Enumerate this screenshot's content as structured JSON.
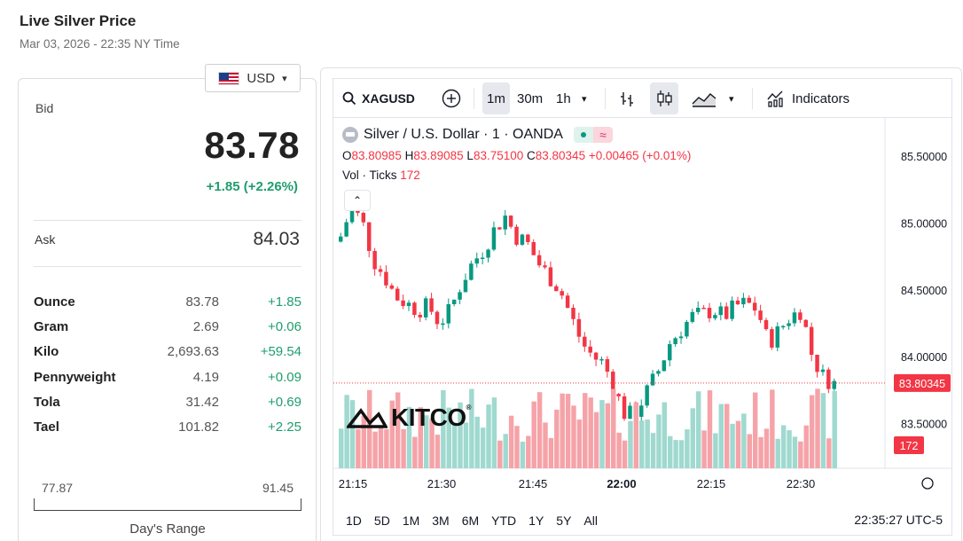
{
  "header": {
    "title": "Live Silver Price",
    "date": "Mar 03, 2026 - 22:35 NY Time"
  },
  "currency": {
    "selected": "USD"
  },
  "quote": {
    "bid_label": "Bid",
    "bid": "83.78",
    "change": "+1.85 (+2.26%)",
    "ask_label": "Ask",
    "ask": "84.03"
  },
  "units": [
    {
      "name": "Ounce",
      "price": "83.78",
      "change": "+1.85"
    },
    {
      "name": "Gram",
      "price": "2.69",
      "change": "+0.06"
    },
    {
      "name": "Kilo",
      "price": "2,693.63",
      "change": "+59.54"
    },
    {
      "name": "Pennyweight",
      "price": "4.19",
      "change": "+0.09"
    },
    {
      "name": "Tola",
      "price": "31.42",
      "change": "+0.69"
    },
    {
      "name": "Tael",
      "price": "101.82",
      "change": "+2.25"
    }
  ],
  "day_range": {
    "low": "77.87",
    "high": "91.45",
    "label": "Day's Range"
  },
  "toolbar": {
    "symbol": "XAGUSD",
    "intervals": [
      "1m",
      "30m",
      "1h"
    ],
    "indicators": "Indicators"
  },
  "legend": {
    "title": "Silver / U.S. Dollar · 1 · OANDA",
    "o_label": "O",
    "o": "83.80985",
    "h_label": "H",
    "h": "83.89085",
    "l_label": "L",
    "l": "83.75100",
    "c_label": "C",
    "c": "83.80345",
    "chg": "+0.00465 (+0.01%)",
    "vol_label": "Vol · Ticks",
    "vol": "172"
  },
  "watermark": "KITCO",
  "ranges": [
    "1D",
    "5D",
    "1M",
    "3M",
    "6M",
    "YTD",
    "1Y",
    "5Y",
    "All"
  ],
  "clock": "22:35:27 UTC-5",
  "colors": {
    "up": "#089981",
    "down": "#f23645",
    "vol_up": "#9fd9cf",
    "vol_down": "#f5a3a8"
  },
  "chart_data": {
    "type": "candlestick",
    "x_ticks": [
      "21:15",
      "21:30",
      "21:45",
      "22:00",
      "22:15",
      "22:30"
    ],
    "y_ticks": [
      "85.50000",
      "85.00000",
      "84.50000",
      "84.00000",
      "83.50000"
    ],
    "last_price": "83.80345",
    "last_volume": "172",
    "close_path": [
      84.9,
      85.12,
      85.0,
      84.72,
      84.6,
      84.45,
      84.4,
      84.35,
      84.38,
      84.25,
      84.35,
      84.55,
      84.7,
      84.8,
      84.95,
      85.05,
      84.9,
      84.85,
      84.7,
      84.6,
      84.5,
      84.3,
      84.1,
      84.0,
      83.95,
      83.75,
      83.55,
      83.6,
      83.75,
      83.9,
      84.1,
      84.2,
      84.3,
      84.32,
      84.35,
      84.3,
      84.38,
      84.4,
      84.35,
      84.1,
      84.2,
      84.3,
      84.35,
      84.0,
      83.85,
      83.8
    ]
  }
}
